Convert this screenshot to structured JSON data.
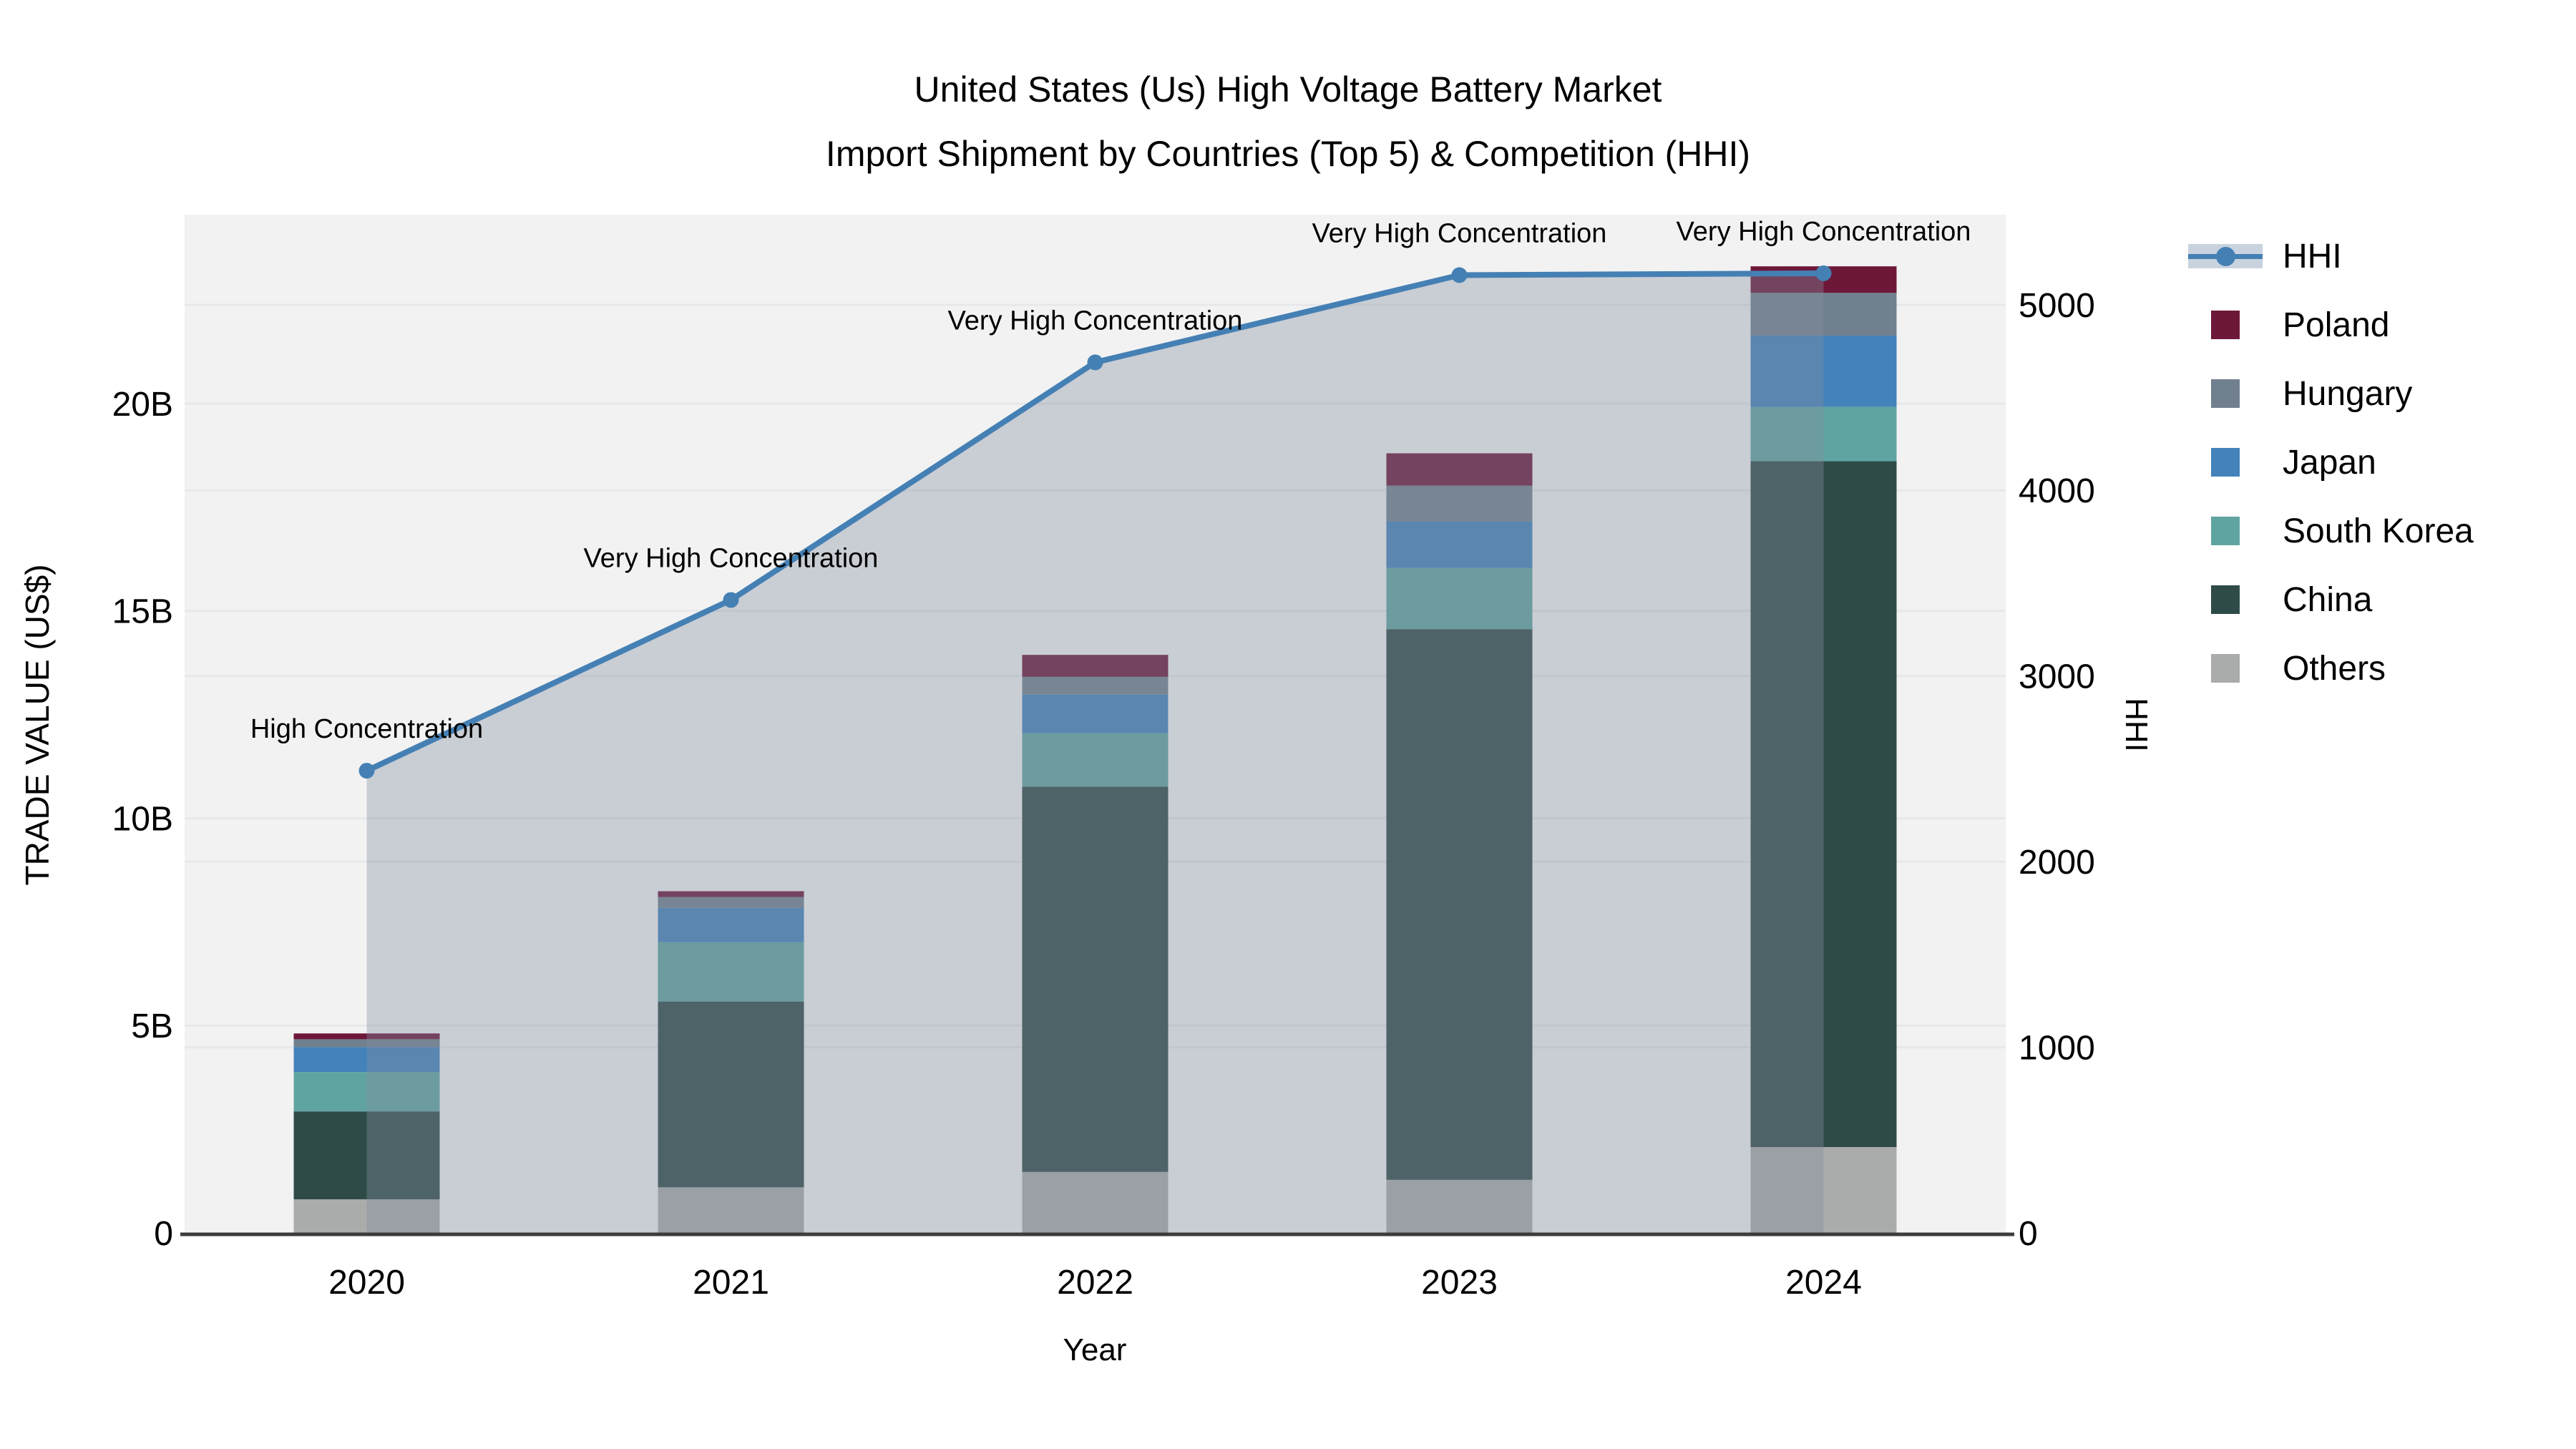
{
  "title": {
    "line1": "United States (Us) High Voltage Battery Market",
    "line2": "Import Shipment by Countries (Top 5) & Competition (HHI)"
  },
  "axes": {
    "x": {
      "label": "Year",
      "ticks": [
        "2020",
        "2021",
        "2022",
        "2023",
        "2024"
      ]
    },
    "y_left": {
      "label": "TRADE VALUE (US$)",
      "ticks": [
        "0",
        "5B",
        "10B",
        "15B",
        "20B"
      ]
    },
    "y_right": {
      "label": "HHI",
      "ticks": [
        "0",
        "1000",
        "2000",
        "3000",
        "4000",
        "5000"
      ]
    }
  },
  "legend": {
    "items": [
      {
        "key": "hhi",
        "label": "HHI",
        "kind": "line"
      },
      {
        "key": "poland",
        "label": "Poland",
        "kind": "swatch"
      },
      {
        "key": "hungary",
        "label": "Hungary",
        "kind": "swatch"
      },
      {
        "key": "japan",
        "label": "Japan",
        "kind": "swatch"
      },
      {
        "key": "south_korea",
        "label": "South Korea",
        "kind": "swatch"
      },
      {
        "key": "china",
        "label": "China",
        "kind": "swatch"
      },
      {
        "key": "others",
        "label": "Others",
        "kind": "swatch"
      }
    ]
  },
  "colors": {
    "hhi": "#4580b4",
    "poland": "#6d1839",
    "hungary": "#71808e",
    "japan": "#4382ba",
    "south_korea": "#60a4a1",
    "china": "#2e4b47",
    "others": "#a9acaa",
    "hhi_area_fill": "rgba(130,142,160,0.37)",
    "plot_background": "#f2f2f2",
    "gridline": "#e6e8e9",
    "axis_line": "#3c3c3c",
    "text": "#000000"
  },
  "chart_data": {
    "type": [
      "bar",
      "line"
    ],
    "title": "United States (Us) High Voltage Battery Market Import Shipment by Countries (Top 5) & Competition (HHI)",
    "xlabel": "Year",
    "ylabel_left": "TRADE VALUE (US$)",
    "ylabel_right": "HHI",
    "categories": [
      "2020",
      "2021",
      "2022",
      "2023",
      "2024"
    ],
    "bar_mode": "stacked",
    "bar_unit": "billion US$",
    "series": [
      {
        "name": "Others",
        "key": "others",
        "values": [
          0.81,
          1.1,
          1.47,
          1.28,
          2.07
        ]
      },
      {
        "name": "China",
        "key": "china",
        "values": [
          2.12,
          4.48,
          9.29,
          13.28,
          16.54
        ]
      },
      {
        "name": "South Korea",
        "key": "south_korea",
        "values": [
          0.95,
          1.43,
          1.29,
          1.48,
          1.31
        ]
      },
      {
        "name": "Japan",
        "key": "japan",
        "values": [
          0.6,
          0.83,
          0.93,
          1.12,
          1.72
        ]
      },
      {
        "name": "Hungary",
        "key": "hungary",
        "values": [
          0.19,
          0.26,
          0.43,
          0.86,
          1.03
        ]
      },
      {
        "name": "Poland",
        "key": "poland",
        "values": [
          0.14,
          0.14,
          0.53,
          0.78,
          0.64
        ]
      }
    ],
    "line_series": {
      "name": "HHI",
      "key": "hhi",
      "axis": "right",
      "values": [
        2490,
        3410,
        4690,
        5160,
        5170
      ],
      "area_fill": true
    },
    "annotations": [
      "High Concentration",
      "Very High Concentration",
      "Very High Concentration",
      "Very High Concentration",
      "Very High Concentration"
    ],
    "ylim_left_billions": [
      0,
      24.6
    ],
    "ylim_right": [
      0,
      5490
    ],
    "grid": true,
    "legend_position": "right"
  }
}
